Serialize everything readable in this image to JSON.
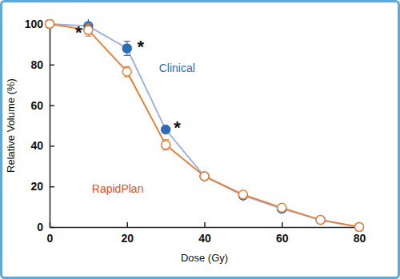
{
  "chart_data": {
    "type": "line",
    "x_label": "Dose (Gy)",
    "y_label": "Relative Volume (%)",
    "x": [
      0,
      10,
      20,
      30,
      40,
      50,
      60,
      70,
      80
    ],
    "series": [
      {
        "name": "Clinical",
        "color": "#2e6db4",
        "marker": "circle",
        "line_color": "#9fb3e0",
        "values": [
          100,
          99,
          88,
          48,
          25,
          15.5,
          9,
          3.5,
          0
        ],
        "errors": [
          0,
          4,
          3.5,
          1.5,
          1,
          1,
          1,
          0.5,
          0
        ]
      },
      {
        "name": "RapidPlan",
        "color": "#e8823a",
        "marker": "open_circle",
        "values": [
          100,
          97,
          76.5,
          40.5,
          25,
          16,
          9.5,
          3.5,
          0
        ],
        "errors": [
          0,
          3,
          2.5,
          2.5,
          1.5,
          1,
          1,
          0.5,
          0
        ]
      }
    ],
    "annotations": [
      {
        "text": "*",
        "x": 7.5,
        "y": 93
      },
      {
        "text": "*",
        "x": 23.5,
        "y": 86
      },
      {
        "text": "*",
        "x": 33,
        "y": 46
      }
    ],
    "xlim": [
      0,
      80
    ],
    "ylim": [
      0,
      100
    ],
    "xticks": [
      0,
      20,
      40,
      60,
      80
    ],
    "yticks": [
      0,
      20,
      40,
      60,
      80,
      100
    ],
    "grid": false
  }
}
